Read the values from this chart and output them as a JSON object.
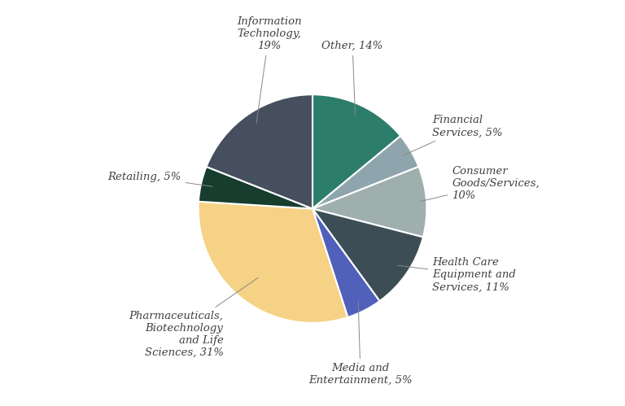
{
  "values": [
    14,
    5,
    10,
    11,
    5,
    31,
    5,
    19
  ],
  "colors": [
    "#2d7d6b",
    "#8fa5ae",
    "#9fafad",
    "#3d4d56",
    "#5060bb",
    "#f5d285",
    "#163d2e",
    "#454f5e"
  ],
  "display_labels": [
    "Other, 14%",
    "Financial\nServices, 5%",
    "Consumer\nGoods/Services,\n10%",
    "Health Care\nEquipment and\nServices, 11%",
    "Media and\nEntertainment, 5%",
    "Pharmaceuticals,\nBiotechnology\nand Life\nSciences, 31%",
    "Retailing, 5%",
    "Information\nTechnology,\n19%"
  ],
  "startangle": 90,
  "background_color": "#ffffff",
  "text_color": "#404040",
  "font_size": 9.5
}
